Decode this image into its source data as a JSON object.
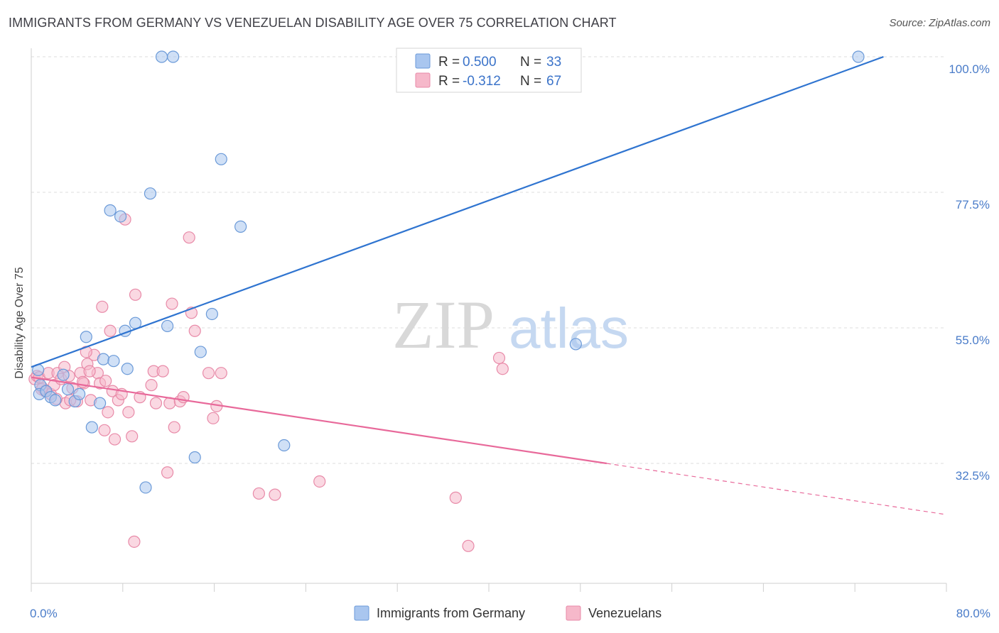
{
  "header": {
    "title": "IMMIGRANTS FROM GERMANY VS VENEZUELAN DISABILITY AGE OVER 75 CORRELATION CHART",
    "source": "Source: ZipAtlas.com"
  },
  "watermark": {
    "zip": "ZIP",
    "atlas": "atlas"
  },
  "legend": {
    "r_label": "R =",
    "n_label": "N =",
    "rows": [
      {
        "r": "0.500",
        "n": "33",
        "color": "#a9c6ef"
      },
      {
        "r": "-0.312",
        "n": "67",
        "color": "#f6b8ca"
      }
    ]
  },
  "colors": {
    "blue_fill": "#a9c6ef",
    "blue_stroke": "#6b9ad8",
    "blue_line": "#2f74d0",
    "pink_fill": "#f6b8ca",
    "pink_stroke": "#e88aa8",
    "pink_line": "#e8699a",
    "grid": "#dcdcdc",
    "tick_text": "#4a7cc9"
  },
  "chart_data": {
    "type": "scatter",
    "title": "IMMIGRANTS FROM GERMANY VS VENEZUELAN DISABILITY AGE OVER 75 CORRELATION CHART",
    "xlabel": "",
    "ylabel": "Disability Age Over 75",
    "xlim": [
      0,
      80
    ],
    "ylim": [
      10,
      101
    ],
    "x_tick_labels": [
      "0.0%",
      "80.0%"
    ],
    "y_ticks": [
      32.5,
      55.0,
      77.5,
      100.0
    ],
    "y_tick_labels": [
      "32.5%",
      "55.0%",
      "77.5%",
      "100.0%"
    ],
    "grid": true,
    "legend_position": "bottom",
    "series": [
      {
        "name": "Immigrants from Germany",
        "r": 0.5,
        "n": 33,
        "points": [
          [
            0.6,
            48.0
          ],
          [
            0.8,
            45.5
          ],
          [
            0.7,
            44.0
          ],
          [
            1.3,
            44.5
          ],
          [
            1.7,
            43.5
          ],
          [
            2.1,
            43.0
          ],
          [
            2.8,
            47.2
          ],
          [
            3.2,
            44.8
          ],
          [
            3.8,
            42.8
          ],
          [
            4.2,
            44.0
          ],
          [
            4.8,
            53.5
          ],
          [
            5.3,
            38.5
          ],
          [
            6.0,
            42.5
          ],
          [
            6.3,
            49.8
          ],
          [
            7.2,
            49.5
          ],
          [
            6.9,
            74.5
          ],
          [
            7.8,
            73.5
          ],
          [
            8.2,
            54.5
          ],
          [
            8.4,
            48.2
          ],
          [
            9.1,
            55.8
          ],
          [
            10.0,
            28.5
          ],
          [
            10.4,
            77.3
          ],
          [
            11.4,
            100.0
          ],
          [
            11.9,
            55.3
          ],
          [
            12.4,
            100.0
          ],
          [
            14.3,
            33.5
          ],
          [
            14.8,
            51.0
          ],
          [
            15.8,
            57.3
          ],
          [
            16.6,
            83.0
          ],
          [
            18.3,
            71.8
          ],
          [
            22.1,
            35.5
          ],
          [
            47.6,
            52.3
          ],
          [
            72.3,
            100.0
          ]
        ],
        "trend": {
          "x": [
            0,
            74.5
          ],
          "y": [
            48.5,
            100.0
          ]
        }
      },
      {
        "name": "Venezuelans",
        "r": -0.312,
        "n": 67,
        "points": [
          [
            0.3,
            46.5
          ],
          [
            0.5,
            47.0
          ],
          [
            0.7,
            46.8
          ],
          [
            1.0,
            45.0
          ],
          [
            1.2,
            44.5
          ],
          [
            1.5,
            47.5
          ],
          [
            1.7,
            44.0
          ],
          [
            2.0,
            45.5
          ],
          [
            2.3,
            47.5
          ],
          [
            2.6,
            46.5
          ],
          [
            2.9,
            48.5
          ],
          [
            3.0,
            42.5
          ],
          [
            3.3,
            47.0
          ],
          [
            3.6,
            45.0
          ],
          [
            4.0,
            42.8
          ],
          [
            4.3,
            47.5
          ],
          [
            4.6,
            45.8
          ],
          [
            4.9,
            49.0
          ],
          [
            5.2,
            43.0
          ],
          [
            5.5,
            50.5
          ],
          [
            5.8,
            47.5
          ],
          [
            6.0,
            45.8
          ],
          [
            6.2,
            58.5
          ],
          [
            6.4,
            38.0
          ],
          [
            6.7,
            41.0
          ],
          [
            6.9,
            54.5
          ],
          [
            7.1,
            44.5
          ],
          [
            7.3,
            36.5
          ],
          [
            7.6,
            43.0
          ],
          [
            7.9,
            44.0
          ],
          [
            8.2,
            73.0
          ],
          [
            8.5,
            41.0
          ],
          [
            8.8,
            37.0
          ],
          [
            9.1,
            60.5
          ],
          [
            10.5,
            45.5
          ],
          [
            10.7,
            47.8
          ],
          [
            10.9,
            42.5
          ],
          [
            11.5,
            47.8
          ],
          [
            11.9,
            31.0
          ],
          [
            12.1,
            42.5
          ],
          [
            12.3,
            59.0
          ],
          [
            12.5,
            38.5
          ],
          [
            13.0,
            42.8
          ],
          [
            13.3,
            43.5
          ],
          [
            13.8,
            70.0
          ],
          [
            14.0,
            57.5
          ],
          [
            14.3,
            54.5
          ],
          [
            15.5,
            47.5
          ],
          [
            15.9,
            40.0
          ],
          [
            16.2,
            42.0
          ],
          [
            16.6,
            47.5
          ],
          [
            9.0,
            19.5
          ],
          [
            19.9,
            27.5
          ],
          [
            21.3,
            27.3
          ],
          [
            25.2,
            29.5
          ],
          [
            40.9,
            50.0
          ],
          [
            41.2,
            48.2
          ],
          [
            37.1,
            26.8
          ],
          [
            38.2,
            18.8
          ],
          [
            4.8,
            51.0
          ],
          [
            2.2,
            43.2
          ],
          [
            3.4,
            43.0
          ],
          [
            6.5,
            46.2
          ],
          [
            9.5,
            43.5
          ],
          [
            0.9,
            44.8
          ],
          [
            4.5,
            46.0
          ],
          [
            5.1,
            47.8
          ]
        ],
        "trend": {
          "x": [
            0,
            50.3
          ],
          "y": [
            46.8,
            32.5
          ]
        },
        "trend_dashed": {
          "x": [
            50.3,
            80
          ],
          "y": [
            32.5,
            24.0
          ]
        }
      }
    ]
  }
}
